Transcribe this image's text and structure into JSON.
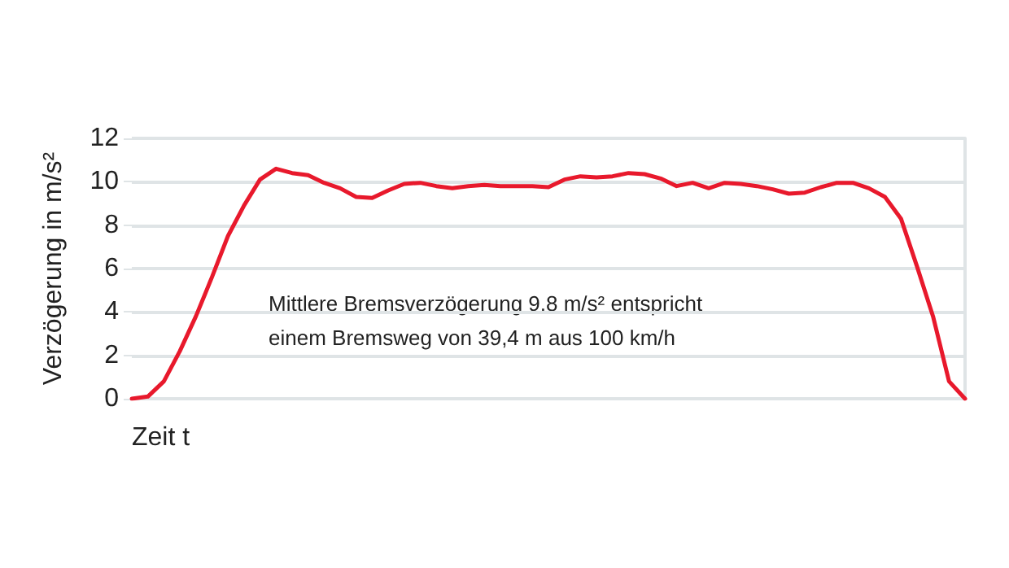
{
  "chart_data": {
    "type": "line",
    "xlabel": "Zeit t",
    "ylabel": "Verzögerung in m/s²",
    "annotations": [
      "Mittlere Bremsverzögerung 9,8 m/s² entspricht\neinem Bremsweg von 39,4 m aus 100 km/h"
    ],
    "categories": [
      null,
      null,
      null,
      null,
      null,
      null,
      null,
      null,
      null,
      null,
      null,
      null,
      null,
      null,
      null,
      null,
      null,
      null,
      null,
      null,
      null,
      null,
      null,
      null,
      null,
      null,
      null,
      null,
      null,
      null,
      null,
      null,
      null,
      null,
      null,
      null,
      null,
      null,
      null,
      null,
      null,
      null,
      null,
      null,
      null,
      null,
      null,
      null,
      null,
      null,
      null,
      null,
      null
    ],
    "series": [
      {
        "color": "#e8192c",
        "values": [
          0,
          0.1,
          0.8,
          2.2,
          3.8,
          5.6,
          7.5,
          8.9,
          10.1,
          10.6,
          10.4,
          10.3,
          9.95,
          9.7,
          9.3,
          9.25,
          9.6,
          9.9,
          9.95,
          9.8,
          9.7,
          9.8,
          9.85,
          9.8,
          9.8,
          9.8,
          9.75,
          10.1,
          10.25,
          10.2,
          10.25,
          10.4,
          10.35,
          10.15,
          9.8,
          9.95,
          9.7,
          9.95,
          9.9,
          9.8,
          9.65,
          9.45,
          9.5,
          9.75,
          9.95,
          9.95,
          9.7,
          9.3,
          8.3,
          6.1,
          3.8,
          0.8,
          0
        ]
      }
    ],
    "ylim": [
      0,
      12
    ],
    "yticks": [
      0,
      2,
      4,
      6,
      8,
      10,
      12
    ],
    "grid": "y",
    "marker": "none",
    "line_style": "solid",
    "tick_labels": "y"
  }
}
